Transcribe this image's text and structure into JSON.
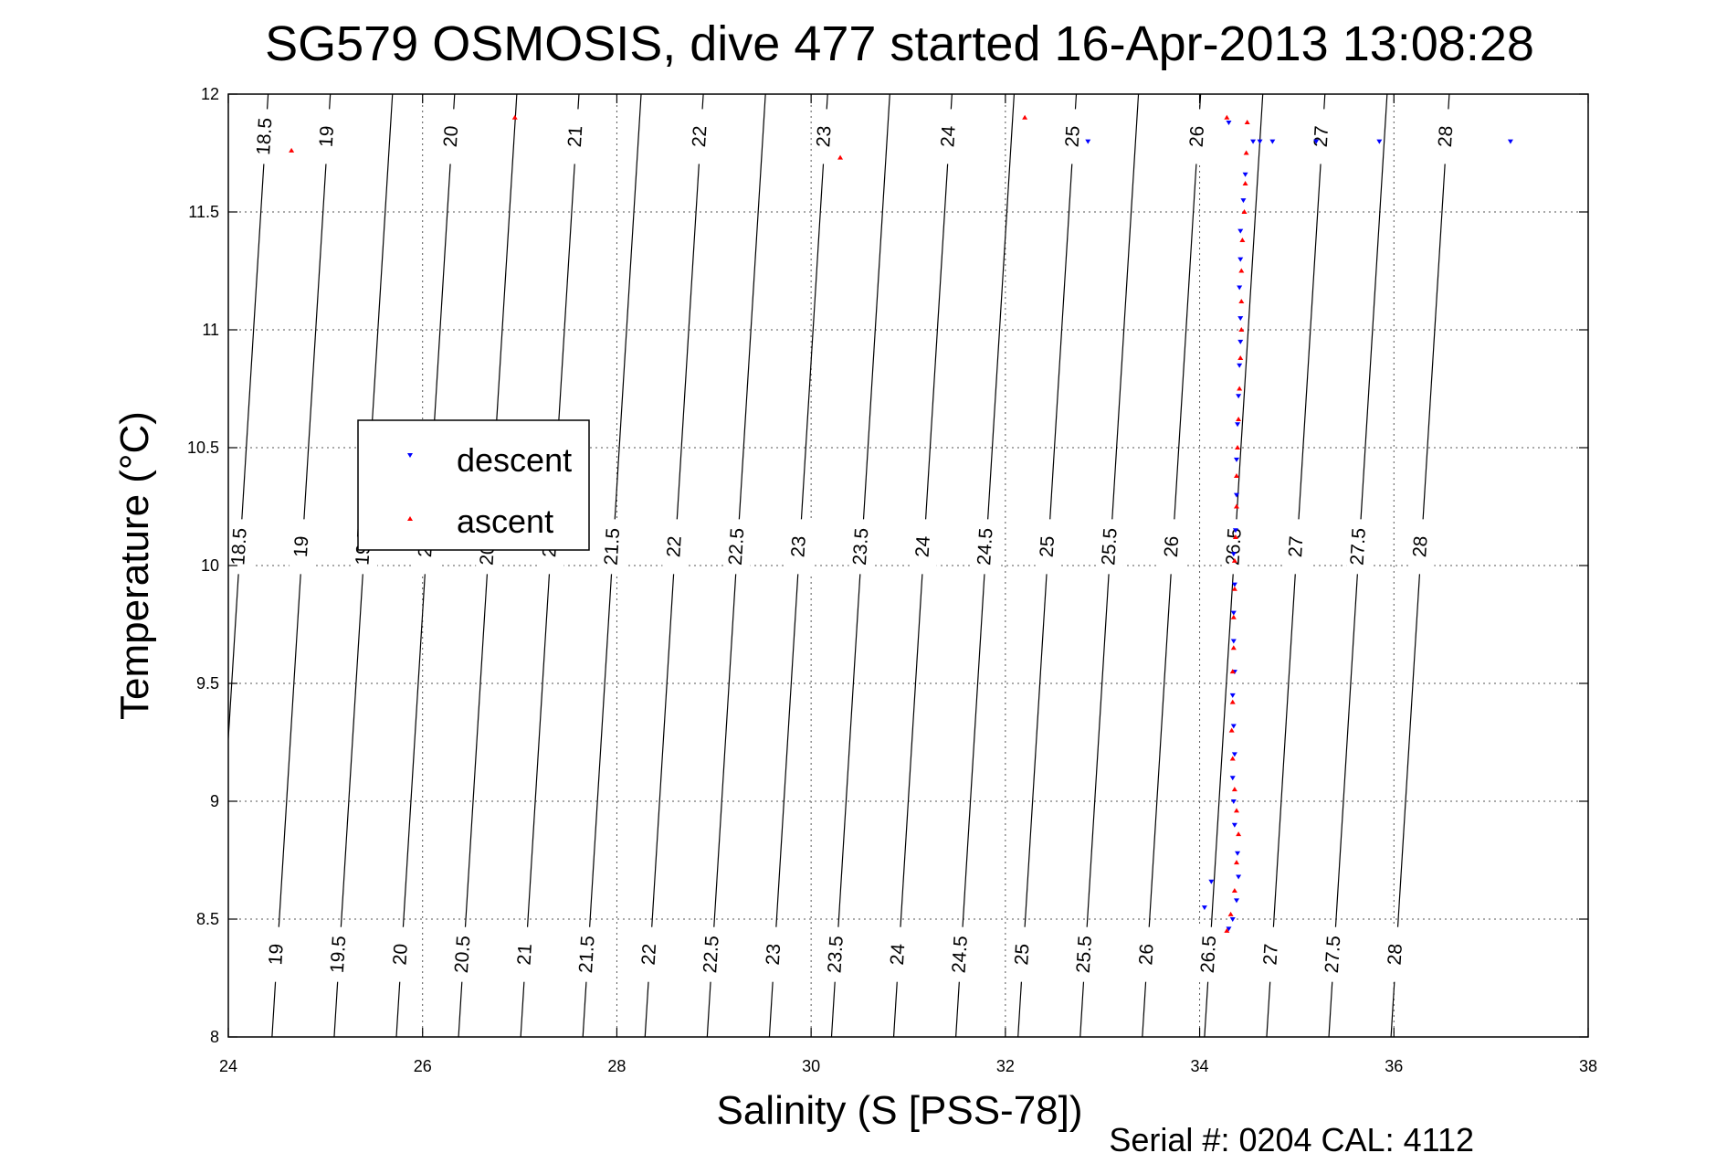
{
  "chart_data": {
    "type": "scatter",
    "title": "SG579 OSMOSIS, dive 477 started 16-Apr-2013 13:08:28",
    "xlabel": "Salinity (S [PSS-78])",
    "ylabel": "Temperature (°C)",
    "xlim": [
      24,
      38
    ],
    "ylim": [
      8,
      12
    ],
    "xticks": [
      24,
      26,
      28,
      30,
      32,
      34,
      36,
      38
    ],
    "yticks": [
      8,
      8.5,
      9,
      9.5,
      10,
      10.5,
      11,
      11.5,
      12
    ],
    "xtick_labels": [
      "24",
      "26",
      "28",
      "30",
      "32",
      "34",
      "36",
      "38"
    ],
    "ytick_labels": [
      "8",
      "8.5",
      "9",
      "9.5",
      "10",
      "10.5",
      "11",
      "11.5",
      "12"
    ],
    "grid": true,
    "legend_position": "middle-left",
    "footer": "Serial #: 0204  CAL: 4112",
    "density_contours": {
      "levels": [
        18.5,
        19,
        19.5,
        20,
        20.5,
        21,
        21.5,
        22,
        22.5,
        23,
        23.5,
        24,
        24.5,
        25,
        25.5,
        26,
        26.5,
        27,
        27.5,
        28
      ],
      "labels": [
        "18.5",
        "19",
        "19.5",
        "20",
        "20.5",
        "21",
        "21.5",
        "22",
        "22.5",
        "23",
        "23.5",
        "24",
        "24.5",
        "25",
        "25.5",
        "26",
        "26.5",
        "27",
        "27.5",
        "28"
      ],
      "color": "#000000"
    },
    "series": [
      {
        "name": "descent",
        "color": "#0000ff",
        "marker": "triangle-down",
        "points": [
          [
            34.05,
            8.55
          ],
          [
            34.12,
            8.66
          ],
          [
            34.3,
            8.46
          ],
          [
            34.34,
            8.5
          ],
          [
            34.38,
            8.58
          ],
          [
            34.4,
            8.68
          ],
          [
            34.39,
            8.78
          ],
          [
            34.36,
            8.9
          ],
          [
            34.35,
            9.0
          ],
          [
            34.34,
            9.1
          ],
          [
            34.36,
            9.2
          ],
          [
            34.35,
            9.32
          ],
          [
            34.34,
            9.45
          ],
          [
            34.36,
            9.55
          ],
          [
            34.35,
            9.68
          ],
          [
            34.35,
            9.8
          ],
          [
            34.36,
            9.92
          ],
          [
            34.35,
            10.05
          ],
          [
            34.37,
            10.15
          ],
          [
            34.38,
            10.3
          ],
          [
            34.38,
            10.45
          ],
          [
            34.39,
            10.6
          ],
          [
            34.4,
            10.72
          ],
          [
            34.41,
            10.85
          ],
          [
            34.42,
            10.95
          ],
          [
            34.42,
            11.05
          ],
          [
            34.41,
            11.18
          ],
          [
            34.42,
            11.3
          ],
          [
            34.42,
            11.42
          ],
          [
            34.45,
            11.55
          ],
          [
            34.47,
            11.66
          ],
          [
            34.55,
            11.8
          ],
          [
            34.62,
            11.8
          ],
          [
            34.75,
            11.8
          ],
          [
            35.2,
            11.8
          ],
          [
            35.85,
            11.8
          ],
          [
            37.2,
            11.8
          ],
          [
            32.85,
            11.8
          ],
          [
            34.3,
            11.88
          ]
        ]
      },
      {
        "name": "ascent",
        "color": "#ff0000",
        "marker": "triangle-up",
        "points": [
          [
            34.28,
            8.45
          ],
          [
            34.32,
            8.52
          ],
          [
            34.36,
            8.62
          ],
          [
            34.38,
            8.74
          ],
          [
            34.4,
            8.86
          ],
          [
            34.38,
            8.96
          ],
          [
            34.36,
            9.05
          ],
          [
            34.34,
            9.18
          ],
          [
            34.33,
            9.3
          ],
          [
            34.34,
            9.42
          ],
          [
            34.34,
            9.55
          ],
          [
            34.35,
            9.65
          ],
          [
            34.35,
            9.78
          ],
          [
            34.36,
            9.9
          ],
          [
            34.36,
            10.02
          ],
          [
            34.37,
            10.12
          ],
          [
            34.38,
            10.25
          ],
          [
            34.38,
            10.38
          ],
          [
            34.39,
            10.5
          ],
          [
            34.4,
            10.62
          ],
          [
            34.41,
            10.75
          ],
          [
            34.42,
            10.88
          ],
          [
            34.43,
            11.0
          ],
          [
            34.43,
            11.12
          ],
          [
            34.43,
            11.25
          ],
          [
            34.44,
            11.38
          ],
          [
            34.46,
            11.5
          ],
          [
            34.47,
            11.62
          ],
          [
            34.48,
            11.75
          ],
          [
            34.49,
            11.88
          ],
          [
            24.65,
            11.76
          ],
          [
            26.95,
            11.9
          ],
          [
            30.3,
            11.73
          ],
          [
            32.2,
            11.9
          ],
          [
            34.28,
            11.9
          ]
        ]
      }
    ]
  }
}
